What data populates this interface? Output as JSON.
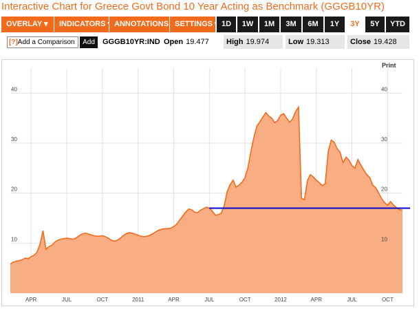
{
  "title": "Interactive Chart for Greece Govt Bond 10 Year Acting as Benchmark (GGGB10YR)",
  "toolbar": {
    "menus": [
      "OVERLAY ▾",
      "INDICATORS ▾",
      "ANNOTATIONS ▾",
      "SETTINGS ▾"
    ],
    "ranges": [
      "1D",
      "1W",
      "1M",
      "3M",
      "6M",
      "1Y",
      "3Y",
      "5Y",
      "YTD"
    ],
    "active_range": "3Y"
  },
  "infobar": {
    "compare_icon": "[?]",
    "compare_placeholder": "Add a Comparison",
    "add_label": "Add",
    "symbol": "GGGB10YR:IND",
    "open_label": "Open",
    "open_value": "19.477",
    "high_label": "High",
    "high_value": "19.974",
    "low_label": "Low",
    "low_value": "19.313",
    "close_label": "Close",
    "close_value": "19.428"
  },
  "print_label": "Print",
  "colors": {
    "accent": "#f26b1d",
    "area_fill": "#f9ad82",
    "line": "#f26b1d",
    "reference_line": "#0000cc"
  },
  "chart_data": {
    "type": "area",
    "ylim": [
      0,
      45
    ],
    "y_ticks_left": [
      10,
      20,
      30,
      40
    ],
    "y_ticks_right": [
      10,
      20,
      30,
      40
    ],
    "x_tick_labels": [
      "APR",
      "JUL",
      "OCT",
      "2011",
      "APR",
      "JUL",
      "OCT",
      "2012",
      "APR",
      "JUL",
      "OCT"
    ],
    "x_tick_index": [
      7,
      19,
      31,
      43,
      55,
      67,
      79,
      91,
      103,
      115,
      127
    ],
    "horizontal_line_value": 17,
    "horizontal_line_from_index": 67,
    "values": [
      5.8,
      6.2,
      6.4,
      6.5,
      6.7,
      7.0,
      6.9,
      7.3,
      7.6,
      8.2,
      9.8,
      12.5,
      8.8,
      9.3,
      9.6,
      10.2,
      10.6,
      10.8,
      10.9,
      11.0,
      10.9,
      10.8,
      11.0,
      11.4,
      11.8,
      12.0,
      11.9,
      11.7,
      11.5,
      11.4,
      11.4,
      11.5,
      11.3,
      11.0,
      10.6,
      10.4,
      10.6,
      11.0,
      11.5,
      11.9,
      12.1,
      12.0,
      11.8,
      11.6,
      11.4,
      11.3,
      11.4,
      11.6,
      11.9,
      12.3,
      12.6,
      12.8,
      12.9,
      12.9,
      13.0,
      13.3,
      13.8,
      14.6,
      15.4,
      16.2,
      16.8,
      16.7,
      16.2,
      16.1,
      16.6,
      16.9,
      17.2,
      17.0,
      16.4,
      15.6,
      15.7,
      16.0,
      17.5,
      20.3,
      21.7,
      22.6,
      21.2,
      21.6,
      22.2,
      23.1,
      25.2,
      28.4,
      31.2,
      33.4,
      34.3,
      35.2,
      36.1,
      35.4,
      35.0,
      34.1,
      34.5,
      35.6,
      35.9,
      35.0,
      34.2,
      34.8,
      36.3,
      37.2,
      19.0,
      18.7,
      22.5,
      23.7,
      23.2,
      22.6,
      22.1,
      21.5,
      21.9,
      28.3,
      30.6,
      30.2,
      28.9,
      28.2,
      26.1,
      27.2,
      26.6,
      25.5,
      25.0,
      26.7,
      25.6,
      24.6,
      23.7,
      23.1,
      21.6,
      21.1,
      20.0,
      18.9,
      18.1,
      17.6,
      18.3,
      17.6,
      17.1,
      16.7,
      16.6
    ]
  }
}
